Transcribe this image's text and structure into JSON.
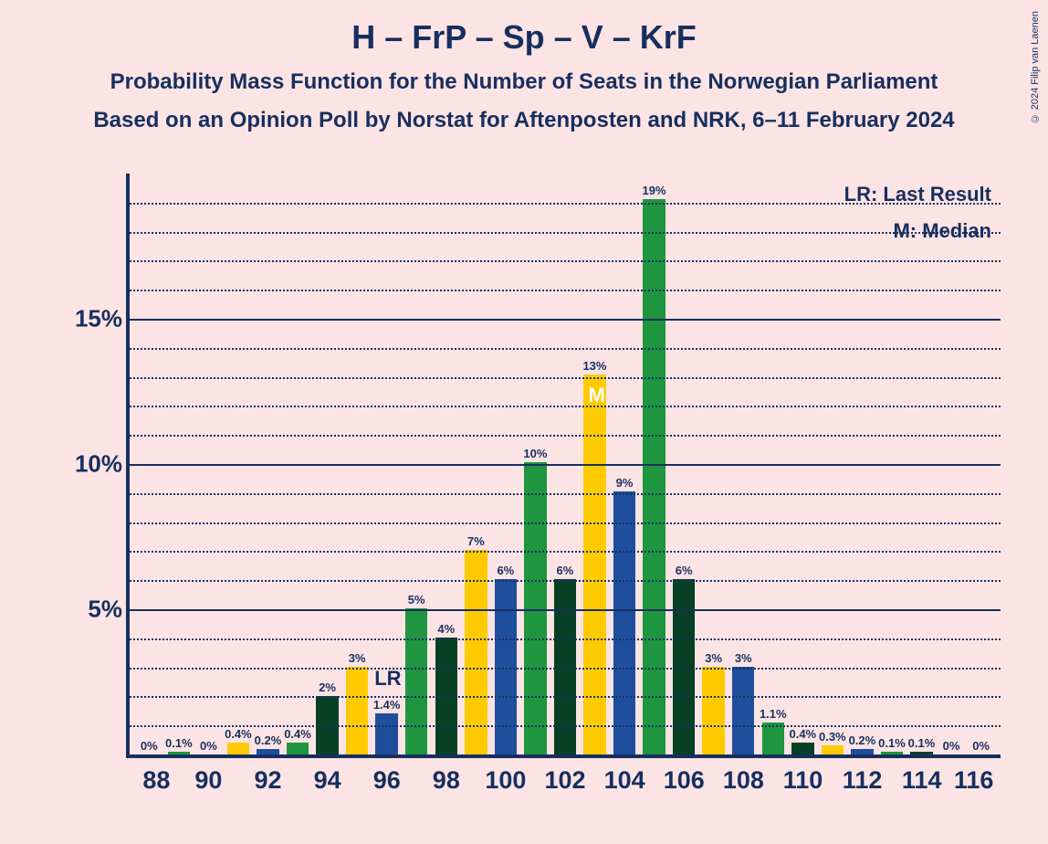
{
  "copyright": "© 2024 Filip van Laenen",
  "title": "H – FrP – Sp – V – KrF",
  "subtitle1": "Probability Mass Function for the Number of Seats in the Norwegian Parliament",
  "subtitle2": "Based on an Opinion Poll by Norstat for Aftenposten and NRK, 6–11 February 2024",
  "legend": {
    "lr": "LR: Last Result",
    "m": "M: Median"
  },
  "lr_marker": "LR",
  "m_marker": "M",
  "lr_seat": 96,
  "m_seat": 103,
  "chart": {
    "type": "bar",
    "background_color": "#fce4e4",
    "axis_color": "#172f5f",
    "text_color": "#172f5f",
    "grid_solid_color": "#172f5f",
    "grid_dotted_color": "#172f5f",
    "ylim": [
      0,
      20
    ],
    "ymajor_step": 5,
    "yminor_step": 1,
    "ymajor_labels": [
      "5%",
      "10%",
      "15%"
    ],
    "x_first": 88,
    "x_last": 116,
    "x_tick_step": 2,
    "bar_colors_cycle": [
      "#1f4e9c",
      "#1e953e",
      "#073f24",
      "#ffcb00"
    ],
    "bars": [
      {
        "seat": 88,
        "value": 0,
        "label": "0%",
        "color": "#1f4e9c"
      },
      {
        "seat": 89,
        "value": 0.1,
        "label": "0.1%",
        "color": "#1e953e"
      },
      {
        "seat": 90,
        "value": 0,
        "label": "0%",
        "color": "#073f24"
      },
      {
        "seat": 91,
        "value": 0.4,
        "label": "0.4%",
        "color": "#ffcb00"
      },
      {
        "seat": 92,
        "value": 0.2,
        "label": "0.2%",
        "color": "#1f4e9c"
      },
      {
        "seat": 93,
        "value": 0.4,
        "label": "0.4%",
        "color": "#1e953e"
      },
      {
        "seat": 94,
        "value": 2,
        "label": "2%",
        "color": "#073f24"
      },
      {
        "seat": 95,
        "value": 3,
        "label": "3%",
        "color": "#ffcb00"
      },
      {
        "seat": 96,
        "value": 1.4,
        "label": "1.4%",
        "color": "#1f4e9c"
      },
      {
        "seat": 97,
        "value": 5,
        "label": "5%",
        "color": "#1e953e"
      },
      {
        "seat": 98,
        "value": 4,
        "label": "4%",
        "color": "#073f24"
      },
      {
        "seat": 99,
        "value": 7,
        "label": "7%",
        "color": "#ffcb00"
      },
      {
        "seat": 100,
        "value": 6,
        "label": "6%",
        "color": "#1f4e9c"
      },
      {
        "seat": 101,
        "value": 10,
        "label": "10%",
        "color": "#1e953e"
      },
      {
        "seat": 102,
        "value": 6,
        "label": "6%",
        "color": "#073f24"
      },
      {
        "seat": 103,
        "value": 13,
        "label": "13%",
        "color": "#ffcb00"
      },
      {
        "seat": 104,
        "value": 9,
        "label": "9%",
        "color": "#1f4e9c"
      },
      {
        "seat": 105,
        "value": 19,
        "label": "19%",
        "color": "#1e953e"
      },
      {
        "seat": 106,
        "value": 6,
        "label": "6%",
        "color": "#073f24"
      },
      {
        "seat": 107,
        "value": 3,
        "label": "3%",
        "color": "#ffcb00"
      },
      {
        "seat": 108,
        "value": 3,
        "label": "3%",
        "color": "#1f4e9c"
      },
      {
        "seat": 109,
        "value": 1.1,
        "label": "1.1%",
        "color": "#1e953e"
      },
      {
        "seat": 110,
        "value": 0.4,
        "label": "0.4%",
        "color": "#073f24"
      },
      {
        "seat": 111,
        "value": 0.3,
        "label": "0.3%",
        "color": "#ffcb00"
      },
      {
        "seat": 112,
        "value": 0.2,
        "label": "0.2%",
        "color": "#1f4e9c"
      },
      {
        "seat": 113,
        "value": 0.1,
        "label": "0.1%",
        "color": "#1e953e"
      },
      {
        "seat": 114,
        "value": 0.1,
        "label": "0.1%",
        "color": "#073f24"
      },
      {
        "seat": 115,
        "value": 0,
        "label": "0%",
        "color": "#ffcb00"
      },
      {
        "seat": 116,
        "value": 0,
        "label": "0%",
        "color": "#1f4e9c"
      }
    ],
    "title_fontsize": 36,
    "subtitle_fontsize": 24,
    "axis_label_fontsize": 26,
    "bar_label_fontsize": 13
  }
}
